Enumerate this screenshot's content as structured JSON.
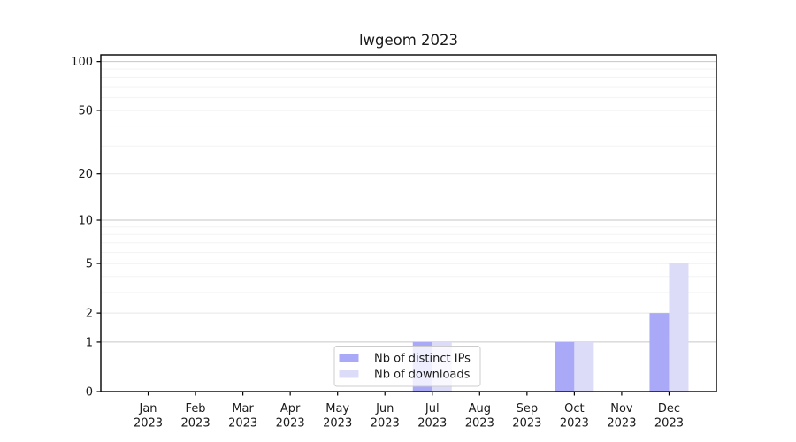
{
  "title": "lwgeom 2023",
  "chart_data": {
    "type": "bar",
    "title": "lwgeom 2023",
    "categories": [
      "Jan",
      "Feb",
      "Mar",
      "Apr",
      "May",
      "Jun",
      "Jul",
      "Aug",
      "Sep",
      "Oct",
      "Nov",
      "Dec"
    ],
    "category_year": "2023",
    "series": [
      {
        "name": "Nb of distinct IPs",
        "color": "#a9a9f8",
        "values": [
          0,
          0,
          0,
          0,
          0,
          0,
          1,
          0,
          0,
          1,
          0,
          2
        ]
      },
      {
        "name": "Nb of downloads",
        "color": "#dcdcf9",
        "values": [
          0,
          0,
          0,
          0,
          0,
          0,
          1,
          0,
          0,
          1,
          0,
          5
        ]
      }
    ],
    "yscale": "log1p",
    "yticks": [
      0,
      1,
      2,
      5,
      10,
      20,
      50,
      100
    ],
    "minor_grid_values": [
      3,
      4,
      6,
      7,
      8,
      9,
      30,
      40,
      60,
      70,
      80,
      90
    ],
    "ylim": [
      0,
      110
    ],
    "xlabel": "",
    "ylabel": "",
    "grid": true,
    "legend_position": "lower center"
  },
  "colors": {
    "background": "#ffffff",
    "bar_distinct_ips": "#a9a9f8",
    "bar_downloads": "#dcdcf9",
    "grid_strong": "#c6c6c6",
    "grid_mid": "#e8e8e8",
    "grid_faint": "#f3f3f3",
    "spine": "#000000",
    "text": "#1a1a1a",
    "legend_border": "#cccccc",
    "legend_background": "rgba(255,255,255,0.8)"
  }
}
